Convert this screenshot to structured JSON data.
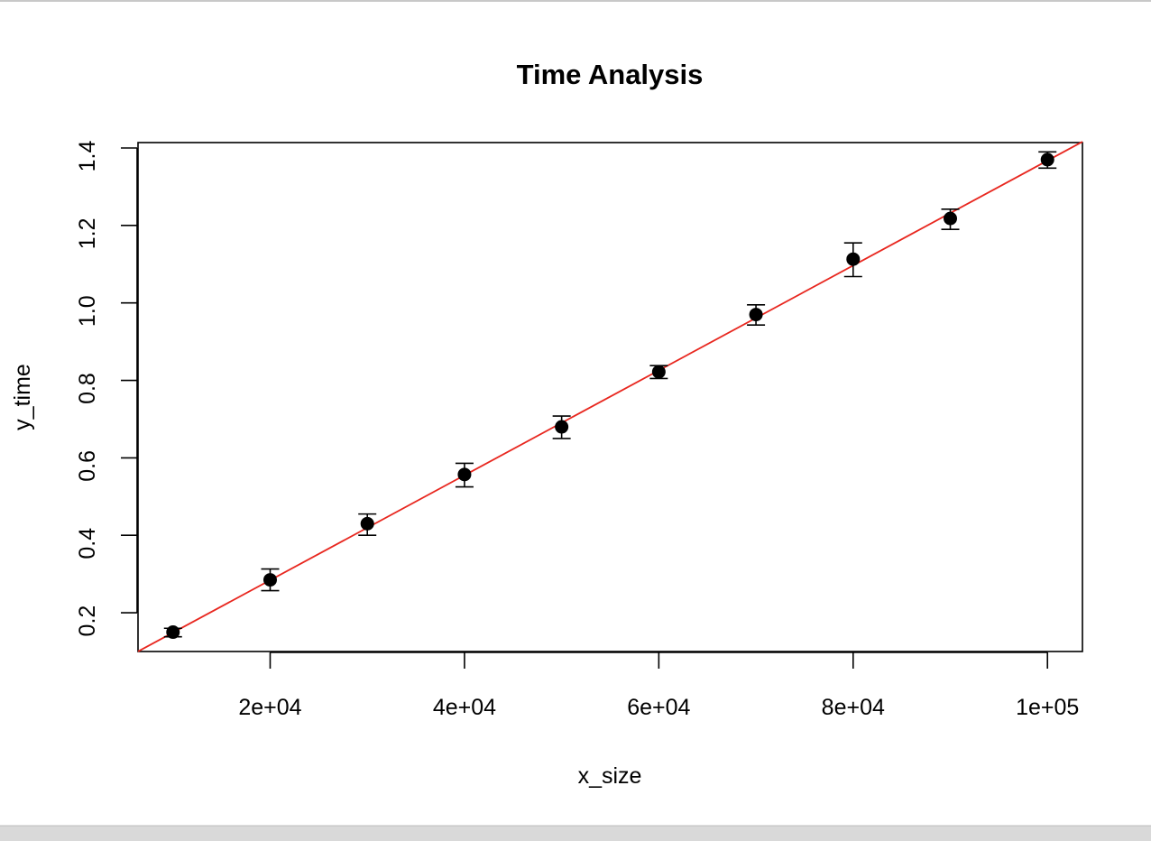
{
  "chart_data": {
    "type": "scatter",
    "title": "Time Analysis",
    "xlabel": "x_size",
    "ylabel": "y_time",
    "xlim": [
      6400,
      103600
    ],
    "ylim": [
      0.1,
      1.414
    ],
    "x_ticks": [
      {
        "value": 20000,
        "label": "2e+04"
      },
      {
        "value": 40000,
        "label": "4e+04"
      },
      {
        "value": 60000,
        "label": "6e+04"
      },
      {
        "value": 80000,
        "label": "8e+04"
      },
      {
        "value": 100000,
        "label": "1e+05"
      }
    ],
    "y_ticks": [
      {
        "value": 0.2,
        "label": "0.2"
      },
      {
        "value": 0.4,
        "label": "0.4"
      },
      {
        "value": 0.6,
        "label": "0.6"
      },
      {
        "value": 0.8,
        "label": "0.8"
      },
      {
        "value": 1.0,
        "label": "1.0"
      },
      {
        "value": 1.2,
        "label": "1.2"
      },
      {
        "value": 1.4,
        "label": "1.4"
      }
    ],
    "grid": false,
    "series": [
      {
        "points": [
          {
            "x": 10000,
            "y": 0.15,
            "err_low": 0.138,
            "err_high": 0.16
          },
          {
            "x": 20000,
            "y": 0.285,
            "err_low": 0.257,
            "err_high": 0.313
          },
          {
            "x": 30000,
            "y": 0.43,
            "err_low": 0.4,
            "err_high": 0.455
          },
          {
            "x": 40000,
            "y": 0.557,
            "err_low": 0.525,
            "err_high": 0.586
          },
          {
            "x": 50000,
            "y": 0.68,
            "err_low": 0.65,
            "err_high": 0.708
          },
          {
            "x": 60000,
            "y": 0.822,
            "err_low": 0.805,
            "err_high": 0.838
          },
          {
            "x": 70000,
            "y": 0.97,
            "err_low": 0.943,
            "err_high": 0.995
          },
          {
            "x": 80000,
            "y": 1.113,
            "err_low": 1.068,
            "err_high": 1.155
          },
          {
            "x": 90000,
            "y": 1.218,
            "err_low": 1.19,
            "err_high": 1.242
          },
          {
            "x": 100000,
            "y": 1.37,
            "err_low": 1.348,
            "err_high": 1.39
          }
        ],
        "color": "#000000"
      }
    ],
    "fit_line": {
      "intercept": 0.0134,
      "slope": 1.354e-05,
      "color": "#e8271f"
    }
  }
}
